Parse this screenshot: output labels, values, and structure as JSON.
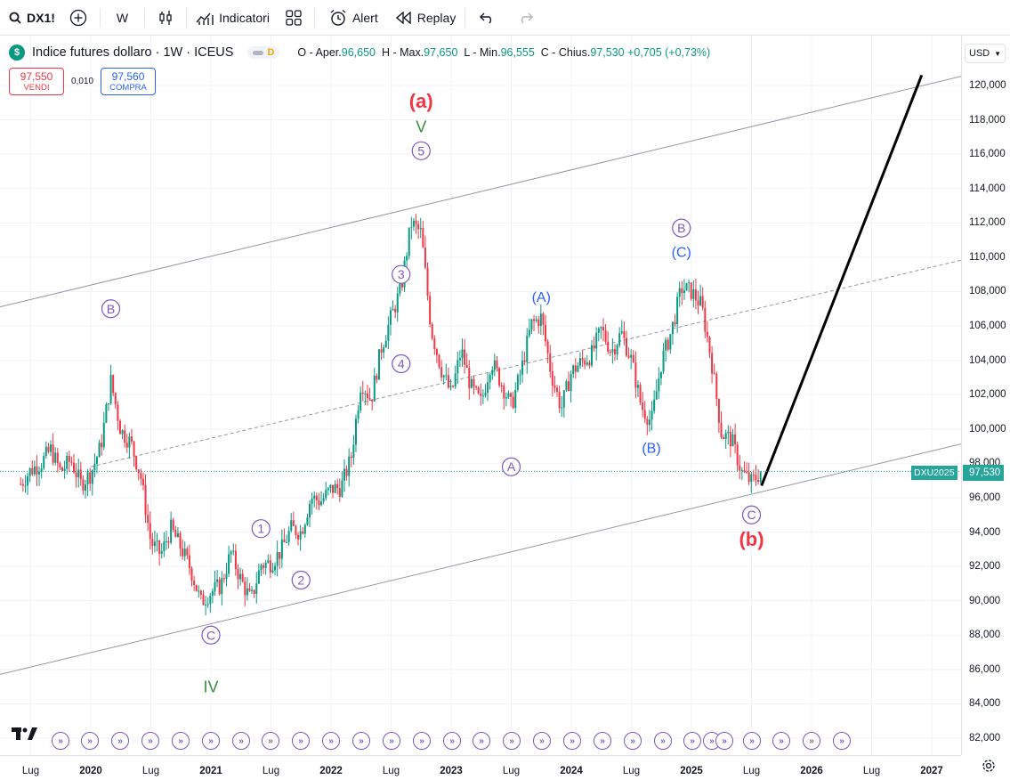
{
  "toolbar": {
    "symbol": "DX1!",
    "interval": "W",
    "indicators_label": "Indicatori",
    "alert_label": "Alert",
    "replay_label": "Replay"
  },
  "legend": {
    "title": "Indice futures dollaro · 1W · ICEUS",
    "logo_letter": "$",
    "flag_letter": "D",
    "ohlc_prefix_o": "O - Aper.",
    "open": "96,650",
    "ohlc_prefix_h": "H - Max.",
    "high": "97,650",
    "ohlc_prefix_l": "L - Min.",
    "low": "96,555",
    "ohlc_prefix_c": "C - Chius.",
    "close": "97,530",
    "change": "+0,705 (+0,73%)"
  },
  "trade": {
    "sell_price": "97,550",
    "sell_label": "VENDI",
    "spread": "0,010",
    "buy_price": "97,560",
    "buy_label": "COMPRA"
  },
  "axis": {
    "currency": "USD",
    "symbol_tag": "DXU2025",
    "price_tag": "97,530"
  },
  "colors": {
    "up": "#089981",
    "down": "#f23645",
    "wave_purple": "#7e57c2",
    "wave_blue": "#2962ff",
    "channel": "#9598a1",
    "projection": "#000000",
    "last_price": "#26a69a"
  },
  "chart_data": {
    "type": "candlestick",
    "title": "Indice futures dollaro · 1W · ICEUS",
    "ylim": [
      81,
      123
    ],
    "y_ticks": [
      "82,000",
      "84,000",
      "86,000",
      "88,000",
      "90,000",
      "92,000",
      "94,000",
      "96,000",
      "98,000",
      "100,000",
      "102,000",
      "104,000",
      "106,000",
      "108,000",
      "110,000",
      "112,000",
      "114,000",
      "116,000",
      "118,000",
      "120,000"
    ],
    "x_ticks": [
      "Lug",
      "2020",
      "Lug",
      "2021",
      "Lug",
      "2022",
      "Lug",
      "2023",
      "Lug",
      "2024",
      "Lug",
      "2025",
      "Lug",
      "2026",
      "Lug",
      "2027"
    ],
    "x_range": [
      "2019-06",
      "2027-03"
    ],
    "last_price": 97.53,
    "price_path": [
      [
        "2019-06",
        96.8
      ],
      [
        "2019-07",
        97.6
      ],
      [
        "2019-08",
        98.0
      ],
      [
        "2019-09",
        98.8
      ],
      [
        "2019-10",
        97.5
      ],
      [
        "2019-11",
        98.2
      ],
      [
        "2019-12",
        96.8
      ],
      [
        "2020-01",
        97.4
      ],
      [
        "2020-02",
        99.0
      ],
      [
        "2020-03",
        102.8
      ],
      [
        "2020-04",
        99.9
      ],
      [
        "2020-05",
        99.2
      ],
      [
        "2020-06",
        97.2
      ],
      [
        "2020-07",
        93.4
      ],
      [
        "2020-08",
        92.7
      ],
      [
        "2020-09",
        94.2
      ],
      [
        "2020-10",
        93.1
      ],
      [
        "2020-11",
        91.8
      ],
      [
        "2020-12",
        89.9
      ],
      [
        "2021-01",
        90.5
      ],
      [
        "2021-02",
        90.9
      ],
      [
        "2021-03",
        92.8
      ],
      [
        "2021-04",
        91.2
      ],
      [
        "2021-05",
        90.0
      ],
      [
        "2021-06",
        92.1
      ],
      [
        "2021-07",
        92.2
      ],
      [
        "2021-08",
        92.9
      ],
      [
        "2021-09",
        94.2
      ],
      [
        "2021-10",
        94.0
      ],
      [
        "2021-11",
        96.0
      ],
      [
        "2021-12",
        95.8
      ],
      [
        "2022-01",
        96.5
      ],
      [
        "2022-02",
        96.6
      ],
      [
        "2022-03",
        98.3
      ],
      [
        "2022-04",
        102.8
      ],
      [
        "2022-05",
        101.7
      ],
      [
        "2022-06",
        104.7
      ],
      [
        "2022-07",
        106.5
      ],
      [
        "2022-08",
        108.2
      ],
      [
        "2022-09",
        112.0
      ],
      [
        "2022-10",
        111.4
      ],
      [
        "2022-11",
        105.8
      ],
      [
        "2022-12",
        103.5
      ],
      [
        "2023-01",
        102.0
      ],
      [
        "2023-02",
        104.6
      ],
      [
        "2023-03",
        102.4
      ],
      [
        "2023-04",
        101.5
      ],
      [
        "2023-05",
        104.0
      ],
      [
        "2023-06",
        102.7
      ],
      [
        "2023-07",
        101.3
      ],
      [
        "2023-08",
        103.4
      ],
      [
        "2023-09",
        106.1
      ],
      [
        "2023-10",
        106.5
      ],
      [
        "2023-11",
        103.2
      ],
      [
        "2023-12",
        101.2
      ],
      [
        "2024-01",
        103.3
      ],
      [
        "2024-02",
        103.9
      ],
      [
        "2024-03",
        104.3
      ],
      [
        "2024-04",
        105.8
      ],
      [
        "2024-05",
        104.5
      ],
      [
        "2024-06",
        105.6
      ],
      [
        "2024-07",
        104.0
      ],
      [
        "2024-08",
        101.3
      ],
      [
        "2024-09",
        100.4
      ],
      [
        "2024-10",
        103.9
      ],
      [
        "2024-11",
        105.7
      ],
      [
        "2024-12",
        108.2
      ],
      [
        "2025-01",
        108.0
      ],
      [
        "2025-02",
        107.2
      ],
      [
        "2025-03",
        104.0
      ],
      [
        "2025-04",
        99.7
      ],
      [
        "2025-05",
        99.4
      ],
      [
        "2025-06",
        97.5
      ],
      [
        "2025-07",
        96.9
      ],
      [
        "2025-08",
        97.53
      ]
    ],
    "wave_labels": [
      {
        "text": "B",
        "style": "circle",
        "date": "2020-03",
        "price": 107.0
      },
      {
        "text": "C",
        "style": "circle",
        "date": "2021-01",
        "price": 88.0
      },
      {
        "text": "IV",
        "style": "plain-green",
        "date": "2021-01",
        "price": 85.0
      },
      {
        "text": "1",
        "style": "circle",
        "date": "2021-06",
        "price": 94.2
      },
      {
        "text": "2",
        "style": "circle",
        "date": "2021-10",
        "price": 91.2
      },
      {
        "text": "3",
        "style": "circle",
        "date": "2022-08",
        "price": 109.0
      },
      {
        "text": "4",
        "style": "circle",
        "date": "2022-08",
        "price": 103.8
      },
      {
        "text": "5",
        "style": "circle",
        "date": "2022-10",
        "price": 116.2
      },
      {
        "text": "V",
        "style": "plain-green",
        "date": "2022-10",
        "price": 117.6
      },
      {
        "text": "(a)",
        "style": "plain-red",
        "date": "2022-10",
        "price": 119.1
      },
      {
        "text": "(A)",
        "style": "plain-blue",
        "date": "2023-10",
        "price": 107.7
      },
      {
        "text": "A",
        "style": "circle",
        "date": "2023-07",
        "price": 97.8
      },
      {
        "text": "(B)",
        "style": "plain-blue",
        "date": "2024-09",
        "price": 98.9
      },
      {
        "text": "B",
        "style": "circle",
        "date": "2024-12",
        "price": 111.7
      },
      {
        "text": "(C)",
        "style": "plain-blue",
        "date": "2024-12",
        "price": 110.3
      },
      {
        "text": "C",
        "style": "circle",
        "date": "2025-07",
        "price": 95.0
      },
      {
        "text": "(b)",
        "style": "plain-red",
        "date": "2025-07",
        "price": 93.6
      }
    ],
    "trend_lines": [
      {
        "name": "upper",
        "style": "solid",
        "from": [
          "2019-06",
          107.4
        ],
        "to": [
          "2027-03",
          120.4
        ]
      },
      {
        "name": "middle",
        "style": "dashed",
        "from": [
          "2020-01",
          97.8
        ],
        "to": [
          "2027-03",
          109.7
        ]
      },
      {
        "name": "lower",
        "style": "solid",
        "from": [
          "2019-06",
          86.0
        ],
        "to": [
          "2027-03",
          99.0
        ]
      },
      {
        "name": "projection",
        "style": "bold",
        "from": [
          "2025-08",
          96.7
        ],
        "to": [
          "2026-12",
          120.6
        ]
      }
    ]
  }
}
